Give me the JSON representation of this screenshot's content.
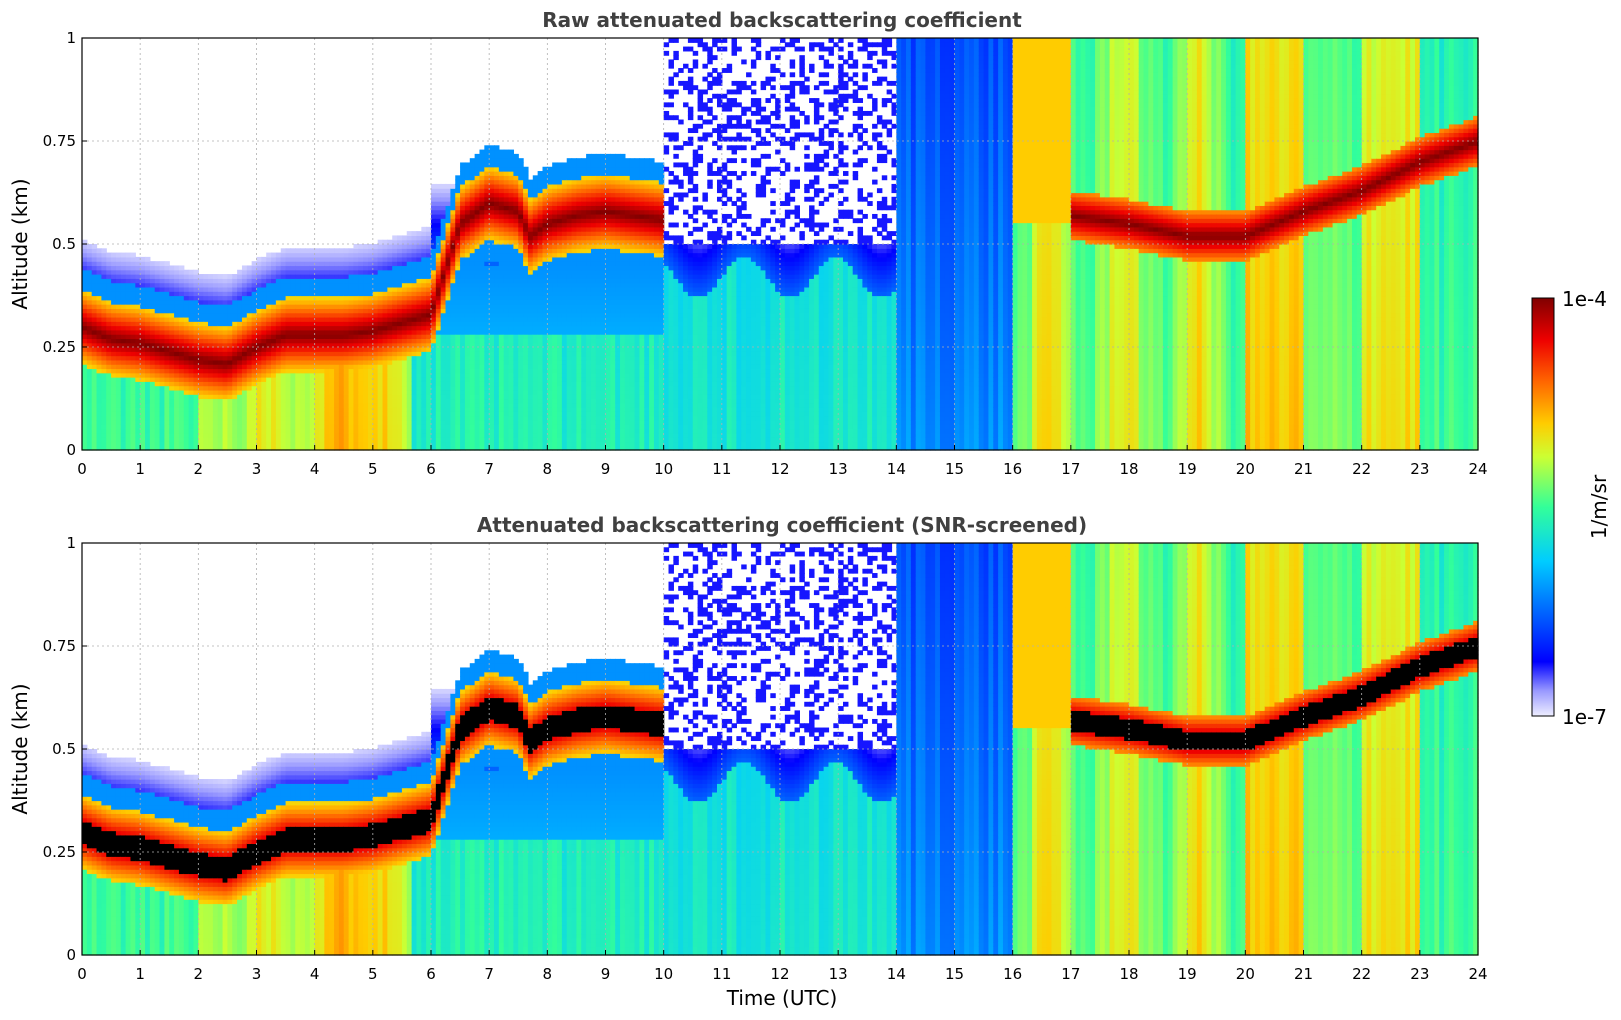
{
  "chart_data": [
    {
      "type": "heatmap",
      "title": "Raw attenuated backscattering coefficient",
      "xlabel": "",
      "ylabel": "Altitude (km)",
      "xlim": [
        0,
        24
      ],
      "ylim": [
        0,
        1
      ],
      "x_ticks": [
        "0",
        "1",
        "2",
        "3",
        "4",
        "5",
        "6",
        "7",
        "8",
        "9",
        "10",
        "11",
        "12",
        "13",
        "14",
        "15",
        "16",
        "17",
        "18",
        "19",
        "20",
        "21",
        "22",
        "23",
        "24"
      ],
      "y_ticks": [
        "0",
        "0.25",
        "0.5",
        "0.75",
        "1"
      ],
      "grid": true,
      "color_scale": "log",
      "layers": {
        "strong_layer": {
          "time": [
            0,
            0.5,
            1,
            1.5,
            2,
            2.5,
            3,
            3.5,
            4,
            4.5,
            5,
            5.5,
            6,
            6.5,
            7,
            7.5,
            7.7,
            8,
            8.5,
            9,
            9.5,
            10
          ],
          "altitude_km": [
            0.3,
            0.27,
            0.26,
            0.24,
            0.22,
            0.21,
            0.25,
            0.28,
            0.28,
            0.28,
            0.29,
            0.31,
            0.33,
            0.55,
            0.6,
            0.58,
            0.52,
            0.55,
            0.57,
            0.58,
            0.57,
            0.56
          ]
        },
        "upper_cloud_top": {
          "time": [
            17,
            18,
            19,
            20,
            21,
            22,
            23,
            24
          ],
          "altitude_km": [
            0.57,
            0.55,
            0.52,
            0.52,
            0.58,
            0.63,
            0.7,
            0.75
          ]
        }
      }
    },
    {
      "type": "heatmap",
      "title": "Attenuated backscattering coefficient (SNR-screened)",
      "xlabel": "Time (UTC)",
      "ylabel": "Altitude (km)",
      "xlim": [
        0,
        24
      ],
      "ylim": [
        0,
        1
      ],
      "x_ticks": [
        "0",
        "1",
        "2",
        "3",
        "4",
        "5",
        "6",
        "7",
        "8",
        "9",
        "10",
        "11",
        "12",
        "13",
        "14",
        "15",
        "16",
        "17",
        "18",
        "19",
        "20",
        "21",
        "22",
        "23",
        "24"
      ],
      "y_ticks": [
        "0",
        "0.25",
        "0.5",
        "0.75",
        "1"
      ],
      "grid": true,
      "color_scale": "log",
      "saturated_color": "#000000"
    }
  ],
  "colorbar": {
    "label": "1/m/sr",
    "min_label": "1e-7",
    "max_label": "1e-4",
    "colormap": "jet",
    "scale": "log"
  }
}
